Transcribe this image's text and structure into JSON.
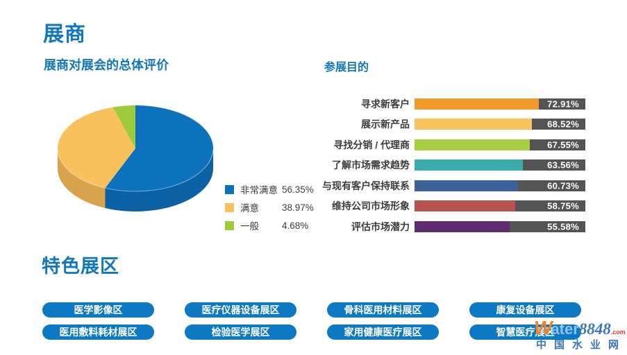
{
  "page": {
    "title": "展商"
  },
  "theme": {
    "accent_blue": "#1377BD",
    "button_blue": "#0C79C2",
    "text_dark": "#3C3C3C",
    "value_box_gray": "#545456"
  },
  "sections": {
    "satisfaction_heading": "展商对展会的总体评价",
    "purpose_heading": "参展目的",
    "featured_heading": "特色展区"
  },
  "featured_zones": [
    "医学影像区",
    "医疗仪器设备展区",
    "骨科医用材料展区",
    "康复设备展区",
    "医用敷料耗材展区",
    "检验医学展区",
    "家用健康医疗展区",
    "智慧医疗展区"
  ],
  "watermark": {
    "w": "W",
    "ater": "ater",
    "number": "8848",
    "tld": ".com",
    "tagline": "中国水业网"
  },
  "chart_data": [
    {
      "type": "pie",
      "style": "3d",
      "title": "展商对展会的总体评价",
      "labels": [
        "非常满意",
        "满意",
        "一般"
      ],
      "values": [
        56.35,
        38.97,
        4.68
      ],
      "value_labels": [
        "56.35%",
        "38.97%",
        "4.68%"
      ],
      "colors": [
        "#0D72BC",
        "#F8C15C",
        "#9DCB3C"
      ],
      "side_colors": [
        "#0B61A4",
        "#D9A24C",
        "#8BB835"
      ],
      "start_angle_deg": 0,
      "direction": "clockwise",
      "legend_position": "right"
    },
    {
      "type": "bar",
      "orientation": "horizontal",
      "title": "参展目的",
      "categories": [
        "寻求新客户",
        "展示新产品",
        "寻找分销 / 代理商",
        "了解市场需求趋势",
        "与现有客户保持联系",
        "维持公司市场形象",
        "评估市场潜力"
      ],
      "values": [
        72.91,
        68.52,
        67.55,
        63.56,
        60.73,
        58.75,
        55.58
      ],
      "value_labels": [
        "72.91%",
        "68.52%",
        "67.55%",
        "63.56%",
        "60.73%",
        "58.75%",
        "55.58%"
      ],
      "colors": [
        "#F2992C",
        "#F9C45C",
        "#A6CE3F",
        "#39ACAD",
        "#3D6396",
        "#B9514F",
        "#5E2C6F"
      ],
      "track_color": "#545456",
      "value_label_color": "#FFFFFF",
      "xlim": [
        0,
        100
      ],
      "grid": false,
      "legend": false
    }
  ]
}
